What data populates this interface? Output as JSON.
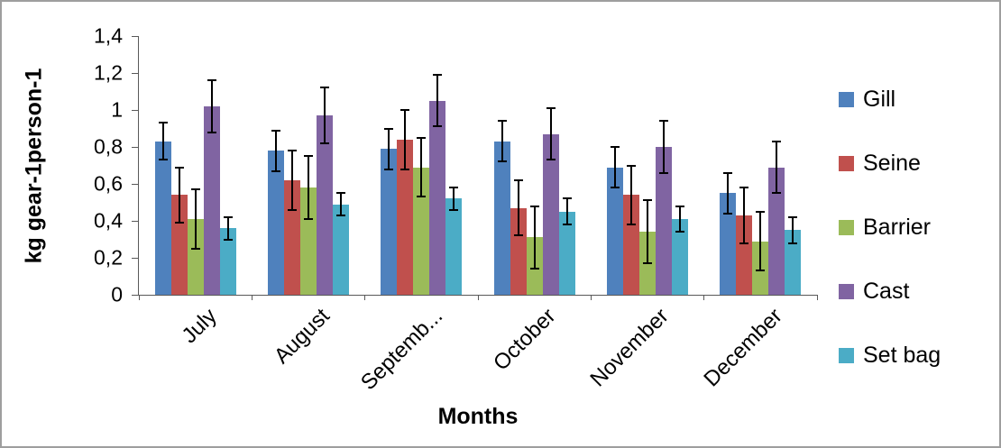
{
  "chart_data": {
    "type": "bar",
    "title": "",
    "xlabel": "Months",
    "ylabel": "kg gear-1person-1",
    "ylim": [
      0,
      1.4
    ],
    "ytick_step": 0.2,
    "ytick_labels": [
      "0",
      "0,2",
      "0,4",
      "0,6",
      "0,8",
      "1",
      "1,2",
      "1,4"
    ],
    "categories": [
      "July",
      "August",
      "Septemb...",
      "October",
      "November",
      "December"
    ],
    "grid": false,
    "legend_position": "right",
    "error_bars": true,
    "series": [
      {
        "name": "Gill",
        "color": "#4f81bd",
        "values": [
          0.83,
          0.78,
          0.79,
          0.83,
          0.69,
          0.55
        ],
        "errors": [
          0.1,
          0.11,
          0.11,
          0.11,
          0.11,
          0.11
        ]
      },
      {
        "name": "Seine",
        "color": "#c0504d",
        "values": [
          0.54,
          0.62,
          0.84,
          0.47,
          0.54,
          0.43
        ],
        "errors": [
          0.15,
          0.16,
          0.16,
          0.15,
          0.16,
          0.15
        ]
      },
      {
        "name": "Barrier",
        "color": "#9bbb59",
        "values": [
          0.41,
          0.58,
          0.69,
          0.31,
          0.34,
          0.29
        ],
        "errors": [
          0.16,
          0.17,
          0.16,
          0.17,
          0.17,
          0.16
        ]
      },
      {
        "name": "Cast",
        "color": "#8064a2",
        "values": [
          1.02,
          0.97,
          1.05,
          0.87,
          0.8,
          0.69
        ],
        "errors": [
          0.14,
          0.15,
          0.14,
          0.14,
          0.14,
          0.14
        ]
      },
      {
        "name": "Set bag",
        "color": "#4bacc6",
        "values": [
          0.36,
          0.49,
          0.52,
          0.45,
          0.41,
          0.35
        ],
        "errors": [
          0.06,
          0.06,
          0.06,
          0.07,
          0.07,
          0.07
        ]
      }
    ]
  }
}
